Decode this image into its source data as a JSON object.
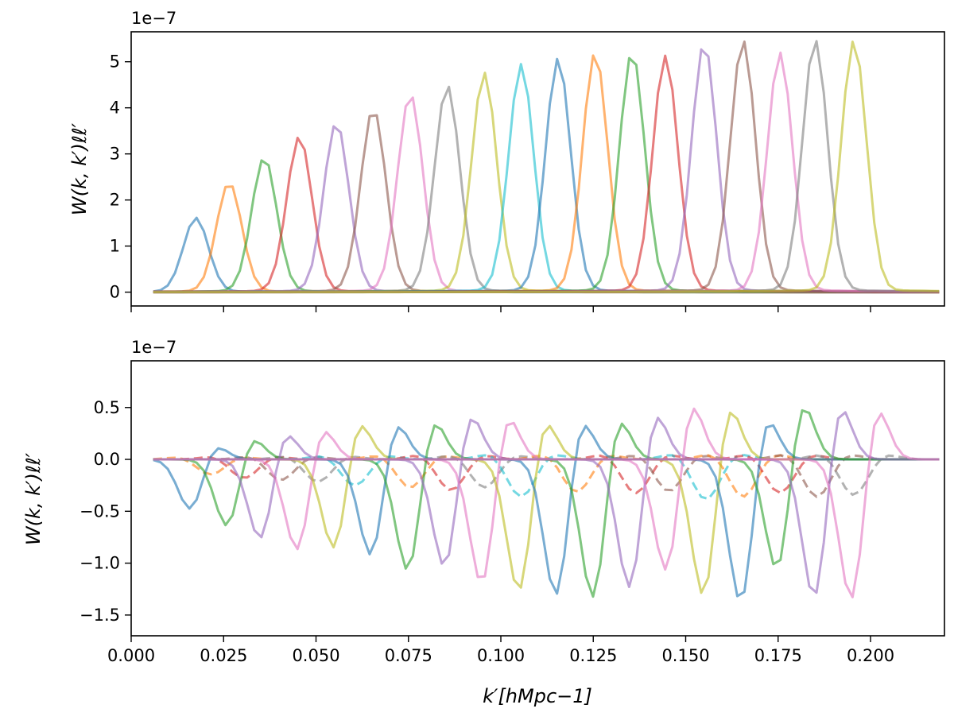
{
  "chart_data": [
    {
      "type": "line",
      "panel": "top",
      "ylabel": "W(k, k′)ℓℓ′",
      "offset_text": "1e−7",
      "xlim": [
        0.0,
        0.22
      ],
      "ylim": [
        -0.3,
        5.65
      ],
      "yticks": [
        0,
        1,
        2,
        3,
        4,
        5
      ],
      "ytick_labels": [
        "0",
        "1",
        "2",
        "3",
        "4",
        "5"
      ],
      "xticks": [
        0.0,
        0.025,
        0.05,
        0.075,
        0.1,
        0.125,
        0.15,
        0.175,
        0.2
      ],
      "show_xtick_labels": false,
      "grid": false,
      "peaks": [
        {
          "center": 0.0175,
          "amp": 1.6,
          "color": "#1f77b4"
        },
        {
          "center": 0.0265,
          "amp": 2.36,
          "color": "#ff7f0e"
        },
        {
          "center": 0.036,
          "amp": 2.9,
          "color": "#2ca02c"
        },
        {
          "center": 0.0455,
          "amp": 3.35,
          "color": "#d62728"
        },
        {
          "center": 0.0555,
          "amp": 3.65,
          "color": "#9467bd"
        },
        {
          "center": 0.0655,
          "amp": 3.95,
          "color": "#8c564b"
        },
        {
          "center": 0.0755,
          "amp": 4.27,
          "color": "#e377c2"
        },
        {
          "center": 0.0855,
          "amp": 4.45,
          "color": "#7f7f7f"
        },
        {
          "center": 0.0955,
          "amp": 4.72,
          "color": "#bcbd22"
        },
        {
          "center": 0.1055,
          "amp": 4.9,
          "color": "#17becf"
        },
        {
          "center": 0.1155,
          "amp": 5.03,
          "color": "#1f77b4"
        },
        {
          "center": 0.1255,
          "amp": 5.15,
          "color": "#ff7f0e"
        },
        {
          "center": 0.1355,
          "amp": 5.17,
          "color": "#2ca02c"
        },
        {
          "center": 0.1445,
          "amp": 5.08,
          "color": "#d62728"
        },
        {
          "center": 0.155,
          "amp": 5.36,
          "color": "#9467bd"
        },
        {
          "center": 0.1655,
          "amp": 5.42,
          "color": "#8c564b"
        },
        {
          "center": 0.1755,
          "amp": 5.15,
          "color": "#e377c2"
        },
        {
          "center": 0.185,
          "amp": 5.43,
          "color": "#7f7f7f"
        },
        {
          "center": 0.1955,
          "amp": 5.41,
          "color": "#bcbd22"
        }
      ]
    },
    {
      "type": "line",
      "panel": "bottom",
      "xlabel": "k′[hMpc−1]",
      "ylabel": "W(k, k′)ℓℓ′",
      "offset_text": "1e−7",
      "xlim": [
        0.0,
        0.22
      ],
      "ylim": [
        -1.7,
        0.95
      ],
      "yticks": [
        -1.5,
        -1.0,
        -0.5,
        0.0,
        0.5
      ],
      "ytick_labels": [
        "−1.5",
        "−1.0",
        "−0.5",
        "0.0",
        "0.5"
      ],
      "xticks": [
        0.0,
        0.025,
        0.05,
        0.075,
        0.1,
        0.125,
        0.15,
        0.175,
        0.2
      ],
      "xtick_labels": [
        "0.000",
        "0.025",
        "0.050",
        "0.075",
        "0.100",
        "0.125",
        "0.150",
        "0.175",
        "0.200"
      ],
      "grid": false,
      "solid_series": [
        {
          "center": 0.0165,
          "neg": 0.55,
          "pos": 0.22,
          "color": "#1f77b4"
        },
        {
          "center": 0.0265,
          "neg": 0.75,
          "pos": 0.34,
          "color": "#2ca02c"
        },
        {
          "center": 0.0355,
          "neg": 0.9,
          "pos": 0.42,
          "color": "#9467bd"
        },
        {
          "center": 0.0455,
          "neg": 1.03,
          "pos": 0.49,
          "color": "#e377c2"
        },
        {
          "center": 0.0555,
          "neg": 1.03,
          "pos": 0.56,
          "color": "#bcbd22"
        },
        {
          "center": 0.0655,
          "neg": 1.1,
          "pos": 0.56,
          "color": "#1f77b4"
        },
        {
          "center": 0.0755,
          "neg": 1.27,
          "pos": 0.62,
          "color": "#2ca02c"
        },
        {
          "center": 0.0855,
          "neg": 1.25,
          "pos": 0.69,
          "color": "#9467bd"
        },
        {
          "center": 0.0955,
          "neg": 1.42,
          "pos": 0.69,
          "color": "#e377c2"
        },
        {
          "center": 0.1055,
          "neg": 1.48,
          "pos": 0.64,
          "color": "#bcbd22"
        },
        {
          "center": 0.1155,
          "neg": 1.52,
          "pos": 0.64,
          "color": "#1f77b4"
        },
        {
          "center": 0.1255,
          "neg": 1.55,
          "pos": 0.67,
          "color": "#2ca02c"
        },
        {
          "center": 0.1355,
          "neg": 1.47,
          "pos": 0.73,
          "color": "#9467bd"
        },
        {
          "center": 0.1455,
          "neg": 1.32,
          "pos": 0.81,
          "color": "#e377c2"
        },
        {
          "center": 0.1555,
          "neg": 1.57,
          "pos": 0.82,
          "color": "#bcbd22"
        },
        {
          "center": 0.1655,
          "neg": 1.6,
          "pos": 0.69,
          "color": "#1f77b4"
        },
        {
          "center": 0.1755,
          "neg": 1.31,
          "pos": 0.82,
          "color": "#2ca02c"
        },
        {
          "center": 0.1855,
          "neg": 1.6,
          "pos": 0.84,
          "color": "#9467bd"
        },
        {
          "center": 0.1955,
          "neg": 1.61,
          "pos": 0.81,
          "color": "#e377c2"
        }
      ],
      "dashed_series": [
        {
          "center": 0.0215,
          "amp": 0.16,
          "color": "#ff7f0e"
        },
        {
          "center": 0.0305,
          "amp": 0.2,
          "color": "#d62728"
        },
        {
          "center": 0.0405,
          "amp": 0.22,
          "color": "#8c564b"
        },
        {
          "center": 0.0505,
          "amp": 0.24,
          "color": "#7f7f7f"
        },
        {
          "center": 0.0605,
          "amp": 0.28,
          "color": "#17becf"
        },
        {
          "center": 0.0755,
          "amp": 0.3,
          "color": "#ff7f0e"
        },
        {
          "center": 0.0865,
          "amp": 0.33,
          "color": "#d62728"
        },
        {
          "center": 0.0955,
          "amp": 0.3,
          "color": "#7f7f7f"
        },
        {
          "center": 0.1055,
          "amp": 0.4,
          "color": "#17becf"
        },
        {
          "center": 0.1205,
          "amp": 0.35,
          "color": "#ff7f0e"
        },
        {
          "center": 0.1365,
          "amp": 0.36,
          "color": "#d62728"
        },
        {
          "center": 0.1455,
          "amp": 0.34,
          "color": "#8c564b"
        },
        {
          "center": 0.1555,
          "amp": 0.43,
          "color": "#17becf"
        },
        {
          "center": 0.1655,
          "amp": 0.4,
          "color": "#ff7f0e"
        },
        {
          "center": 0.1755,
          "amp": 0.36,
          "color": "#d62728"
        },
        {
          "center": 0.1855,
          "amp": 0.4,
          "color": "#8c564b"
        },
        {
          "center": 0.1955,
          "amp": 0.38,
          "color": "#7f7f7f"
        }
      ]
    }
  ]
}
